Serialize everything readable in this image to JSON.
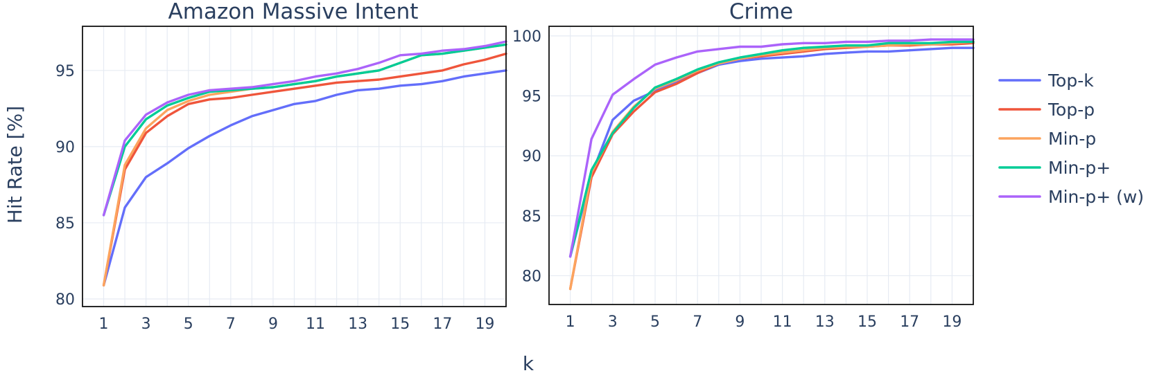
{
  "colors": {
    "Top-k": "#636efa",
    "Top-p": "#ef553b",
    "Min-p": "#fca45e",
    "Min-p+": "#00cc96",
    "Min-p+ (w)": "#ab63fa"
  },
  "chart_data": [
    {
      "type": "line",
      "title": "Amazon Massive Intent",
      "xlabel": "k",
      "ylabel": "Hit Rate [%]",
      "xlim": [
        0,
        20
      ],
      "ylim": [
        79.5,
        97.9
      ],
      "xticks": [
        1,
        3,
        5,
        7,
        9,
        11,
        13,
        15,
        17,
        19
      ],
      "yticks": [
        80,
        85,
        90,
        95
      ],
      "grid": true,
      "x": [
        1,
        2,
        3,
        4,
        5,
        6,
        7,
        8,
        9,
        10,
        11,
        12,
        13,
        14,
        15,
        16,
        17,
        18,
        19,
        20
      ],
      "series": [
        {
          "name": "Top-k",
          "values": [
            80.9,
            86.0,
            88.0,
            88.9,
            89.9,
            90.7,
            91.4,
            92.0,
            92.4,
            92.8,
            93.0,
            93.4,
            93.7,
            93.8,
            94.0,
            94.1,
            94.3,
            94.6,
            94.8,
            95.0
          ]
        },
        {
          "name": "Top-p",
          "values": [
            80.9,
            88.5,
            90.9,
            92.0,
            92.8,
            93.1,
            93.2,
            93.4,
            93.6,
            93.8,
            94.0,
            94.2,
            94.3,
            94.4,
            94.6,
            94.8,
            95.0,
            95.4,
            95.7,
            96.1
          ]
        },
        {
          "name": "Min-p",
          "values": [
            80.9,
            88.8,
            91.2,
            92.4,
            93.0,
            93.4,
            93.6,
            93.8,
            93.9,
            94.1,
            94.3,
            94.6,
            94.8,
            95.0,
            95.5,
            96.0,
            96.1,
            96.3,
            96.5,
            96.7
          ]
        },
        {
          "name": "Min-p+",
          "values": [
            85.5,
            90.0,
            91.8,
            92.7,
            93.2,
            93.6,
            93.7,
            93.8,
            93.9,
            94.1,
            94.3,
            94.6,
            94.8,
            95.0,
            95.5,
            96.0,
            96.1,
            96.3,
            96.5,
            96.7
          ]
        },
        {
          "name": "Min-p+ (w)",
          "values": [
            85.5,
            90.4,
            92.1,
            92.9,
            93.4,
            93.7,
            93.8,
            93.9,
            94.1,
            94.3,
            94.6,
            94.8,
            95.1,
            95.5,
            96.0,
            96.1,
            96.3,
            96.4,
            96.6,
            96.9
          ]
        }
      ]
    },
    {
      "type": "line",
      "title": "Crime",
      "xlabel": "k",
      "ylabel": "",
      "xlim": [
        0,
        20
      ],
      "ylim": [
        77.6,
        100.8
      ],
      "xticks": [
        1,
        3,
        5,
        7,
        9,
        11,
        13,
        15,
        17,
        19
      ],
      "yticks": [
        80,
        85,
        90,
        95,
        100
      ],
      "grid": true,
      "x": [
        1,
        2,
        3,
        4,
        5,
        6,
        7,
        8,
        9,
        10,
        11,
        12,
        13,
        14,
        15,
        16,
        17,
        18,
        19,
        20
      ],
      "series": [
        {
          "name": "Top-k",
          "values": [
            81.6,
            88.4,
            93.0,
            94.6,
            95.4,
            96.1,
            96.9,
            97.6,
            97.9,
            98.1,
            98.2,
            98.3,
            98.5,
            98.6,
            98.7,
            98.7,
            98.8,
            98.9,
            99.0,
            99.0
          ]
        },
        {
          "name": "Top-p",
          "values": [
            78.9,
            88.2,
            91.8,
            93.7,
            95.3,
            96.0,
            96.9,
            97.7,
            98.1,
            98.3,
            98.5,
            98.7,
            98.9,
            99.0,
            99.1,
            99.2,
            99.2,
            99.3,
            99.3,
            99.4
          ]
        },
        {
          "name": "Min-p",
          "values": [
            78.9,
            88.6,
            92.0,
            94.1,
            95.6,
            96.3,
            97.1,
            97.7,
            98.1,
            98.4,
            98.6,
            98.8,
            99.0,
            99.1,
            99.1,
            99.2,
            99.3,
            99.3,
            99.4,
            99.5
          ]
        },
        {
          "name": "Min-p+",
          "values": [
            81.6,
            88.8,
            91.9,
            94.0,
            95.7,
            96.4,
            97.2,
            97.8,
            98.2,
            98.5,
            98.8,
            99.0,
            99.1,
            99.2,
            99.2,
            99.4,
            99.4,
            99.4,
            99.5,
            99.5
          ]
        },
        {
          "name": "Min-p+ (w)",
          "values": [
            81.6,
            91.4,
            95.1,
            96.4,
            97.6,
            98.2,
            98.7,
            98.9,
            99.1,
            99.1,
            99.3,
            99.4,
            99.4,
            99.5,
            99.5,
            99.6,
            99.6,
            99.7,
            99.7,
            99.7
          ]
        }
      ]
    }
  ],
  "legend": [
    "Top-k",
    "Top-p",
    "Min-p",
    "Min-p+",
    "Min-p+ (w)"
  ],
  "legend_placement": "right"
}
